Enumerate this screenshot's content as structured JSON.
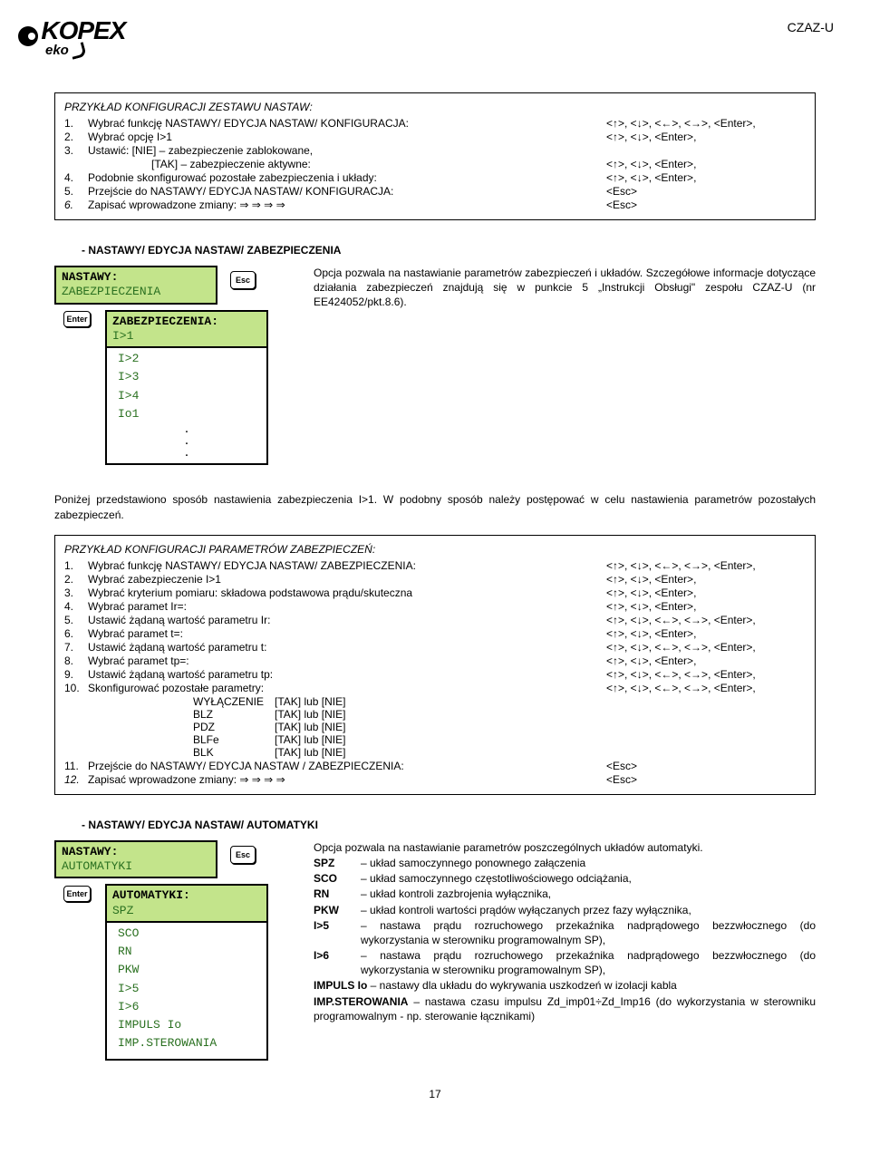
{
  "logo": {
    "main": "KOPEX",
    "sub": "eko"
  },
  "header_label": "CZAZ-U",
  "box1": {
    "title": "PRZYKŁAD KONFIGURACJI ZESTAWU NASTAW:",
    "steps": [
      {
        "n": "1.",
        "t": "Wybrać funkcję NASTAWY/ EDYCJA NASTAW/ KONFIGURACJA:",
        "k": "<↑>, <↓>, <←>, <→>, <Enter>,"
      },
      {
        "n": "2.",
        "t": "Wybrać opcję I>1",
        "k": "<↑>, <↓>, <Enter>,"
      },
      {
        "n": "3.",
        "t": "Ustawić:    [NIE] – zabezpieczenie zablokowane,",
        "k": ""
      },
      {
        "n": "",
        "t": "[TAK] – zabezpieczenie aktywne:",
        "k": "<↑>, <↓>, <Enter>,",
        "indent": true
      },
      {
        "n": "4.",
        "t": "Podobnie skonfigurować pozostałe zabezpieczenia i układy:",
        "k": "<↑>, <↓>, <Enter>,"
      },
      {
        "n": "5.",
        "t": "Przejście do NASTAWY/ EDYCJA NASTAW/ KONFIGURACJA:",
        "k": "<Esc>"
      },
      {
        "n": "6.",
        "t": "Zapisać wprowadzone zmiany: ⇒    ⇒    ⇒    ⇒",
        "k": "<Esc>",
        "italic_n": true
      }
    ]
  },
  "section1": {
    "heading": "NASTAWY/ EDYCJA NASTAW/ ZABEZPIECZENIA",
    "menu_top": {
      "title": "NASTAWY:",
      "sel": "ZABEZPIECZENIA"
    },
    "menu_sub": {
      "title": "ZABEZPIECZENIA:",
      "sel": "I>1"
    },
    "rest": [
      "I>2",
      "I>3",
      "I>4",
      "Io1"
    ],
    "esc": "Esc",
    "enter": "Enter",
    "desc": "Opcja pozwala na nastawianie parametrów zabezpieczeń i układów. Szczegółowe informacje dotyczące działania zabezpieczeń znajdują się w punkcie 5 „Instrukcji Obsługi\" zespołu CZAZ-U  (nr EE424052/pkt.8.6)."
  },
  "below_text": "Poniżej przedstawiono sposób nastawienia zabezpieczenia I>1. W podobny sposób należy postępować w celu nastawienia parametrów pozostałych zabezpieczeń.",
  "box2": {
    "title": "PRZYKŁAD KONFIGURACJI PARAMETRÓW ZABEZPIECZEŃ:",
    "steps": [
      {
        "n": "1.",
        "t": "Wybrać funkcję NASTAWY/ EDYCJA NASTAW/ ZABEZPIECZENIA:",
        "k": "<↑>, <↓>, <←>, <→>, <Enter>,"
      },
      {
        "n": "2.",
        "t": "Wybrać zabezpieczenie I>1",
        "k": "<↑>, <↓>, <Enter>,"
      },
      {
        "n": "3.",
        "t": "Wybrać kryterium pomiaru: składowa podstawowa prądu/skuteczna",
        "k": "<↑>, <↓>, <Enter>,"
      },
      {
        "n": "4.",
        "t": "Wybrać paramet Ir=:",
        "k": "<↑>, <↓>, <Enter>,"
      },
      {
        "n": "5.",
        "t": "Ustawić żądaną wartość parametru Ir:",
        "k": "<↑>, <↓>, <←>, <→>, <Enter>,"
      },
      {
        "n": "6.",
        "t": "Wybrać paramet t=:",
        "k": "<↑>, <↓>, <Enter>,"
      },
      {
        "n": "7.",
        "t": "Ustawić żądaną wartość parametru t:",
        "k": "<↑>, <↓>, <←>, <→>, <Enter>,"
      },
      {
        "n": "8.",
        "t": "Wybrać paramet tp=:",
        "k": "<↑>, <↓>, <Enter>,"
      },
      {
        "n": "9.",
        "t": "Ustawić żądaną wartość parametru tp:",
        "k": "<↑>, <↓>, <←>, <→>, <Enter>,"
      },
      {
        "n": "10.",
        "t": "Skonfigurować pozostałe parametry:",
        "k": "<↑>, <↓>, <←>, <→>, <Enter>,"
      }
    ],
    "params": [
      {
        "l": "WYŁĄCZENIE",
        "v": "[TAK] lub [NIE]"
      },
      {
        "l": "BLZ",
        "v": "[TAK] lub [NIE]"
      },
      {
        "l": "PDZ",
        "v": "[TAK] lub [NIE]"
      },
      {
        "l": "BLFe",
        "v": "[TAK] lub [NIE]"
      },
      {
        "l": "BLK",
        "v": "[TAK] lub [NIE]"
      }
    ],
    "steps2": [
      {
        "n": "11.",
        "t": "Przejście do NASTAWY/ EDYCJA NASTAW / ZABEZPIECZENIA:",
        "k": "<Esc>"
      },
      {
        "n": "12.",
        "t": "Zapisać wprowadzone zmiany: ⇒    ⇒    ⇒    ⇒",
        "k": "<Esc>",
        "italic_n": true
      }
    ]
  },
  "section2": {
    "heading": "NASTAWY/ EDYCJA NASTAW/ AUTOMATYKI",
    "menu_top": {
      "title": "NASTAWY:",
      "sel": "AUTOMATYKI"
    },
    "menu_sub": {
      "title": "AUTOMATYKI:",
      "sel": "SPZ"
    },
    "rest": [
      "SCO",
      "RN",
      "PKW",
      "I>5",
      "I>6",
      "IMPULS Io",
      "IMP.STEROWANIA"
    ],
    "esc": "Esc",
    "enter": "Enter",
    "desc_intro": "Opcja pozwala na nastawianie parametrów poszczególnych układów automatyki.",
    "defs": [
      {
        "l": "SPZ",
        "t": "– układ samoczynnego ponownego załączenia"
      },
      {
        "l": "SCO",
        "t": "– układ samoczynnego częstotliwościowego odciążania,"
      },
      {
        "l": "RN",
        "t": "– układ kontroli zazbrojenia wyłącznika,"
      },
      {
        "l": "PKW",
        "t": "– układ kontroli wartości prądów wyłączanych przez fazy wyłącznika,"
      },
      {
        "l": "I>5",
        "t": "– nastawa prądu rozruchowego przekaźnika nadprądowego bezzwłocznego (do wykorzystania w sterowniku programowalnym SP),"
      },
      {
        "l": "I>6",
        "t": "– nastawa prądu rozruchowego przekaźnika nadprądowego bezzwłocznego (do wykorzystania w sterowniku programowalnym SP),"
      }
    ],
    "impuls_io": {
      "l": "IMPULS Io",
      "t": " – nastawy dla układu do wykrywania uszkodzeń w izolacji kabla"
    },
    "imp_ster": {
      "l": "IMP.STEROWANIA",
      "t": " – nastawa czasu impulsu Zd_imp01÷Zd_Imp16 (do wykorzystania w sterowniku programowalnym - np. sterowanie łącznikami)"
    }
  },
  "page_num": "17"
}
